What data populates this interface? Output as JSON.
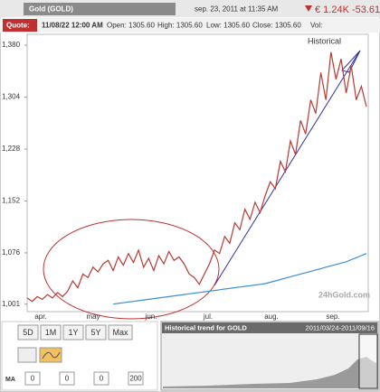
{
  "header": {
    "title": "Gold (GOLD)",
    "timestamp": "sep. 23, 2011 at 11:35 AM",
    "price": "€ 1.24K -53.61"
  },
  "quote": {
    "label": "Quote:",
    "date": "11/08/22 12:00 AM",
    "open": "Open: 1305.60",
    "high": "High: 1305.60",
    "low": "Low: 1305.60",
    "close": "Close: 1305.60",
    "vol": "Vol:"
  },
  "chart_data": {
    "type": "line",
    "annotation": "Historical",
    "watermark": "24hGold.com",
    "x_labels": [
      "apr.",
      "may",
      "jun.",
      "jul.",
      "aug.",
      "sep."
    ],
    "ylim": [
      990,
      1396
    ],
    "yticks": [
      {
        "value": 1001,
        "label": "1,001"
      },
      {
        "value": 1076,
        "label": "1,076"
      },
      {
        "value": 1152,
        "label": "1,152"
      },
      {
        "value": 1228,
        "label": "1,228"
      },
      {
        "value": 1304,
        "label": "1,304"
      },
      {
        "value": 1380,
        "label": "1,380"
      }
    ],
    "grid": false,
    "series": [
      {
        "color": "#b83a32",
        "values": [
          1010,
          1005,
          1012,
          1008,
          1015,
          1010,
          1018,
          1012,
          1020,
          1035,
          1025,
          1045,
          1040,
          1055,
          1048,
          1060,
          1065,
          1050,
          1070,
          1058,
          1075,
          1062,
          1080,
          1055,
          1068,
          1050,
          1072,
          1060,
          1078,
          1065,
          1070,
          1060,
          1045,
          1040,
          1030,
          1045,
          1060,
          1080,
          1075,
          1100,
          1090,
          1120,
          1110,
          1140,
          1125,
          1150,
          1135,
          1160,
          1180,
          1170,
          1210,
          1195,
          1240,
          1220,
          1270,
          1250,
          1300,
          1280,
          1340,
          1300,
          1370,
          1330,
          1360,
          1310,
          1350,
          1300,
          1320,
          1290
        ]
      },
      {
        "color": "#3a8fd6",
        "values": [
          null,
          null,
          null,
          null,
          null,
          null,
          null,
          null,
          null,
          null,
          null,
          null,
          null,
          null,
          null,
          null,
          null,
          1001,
          1002,
          1003,
          1004,
          1005,
          1006,
          1007,
          1008,
          1009,
          1010,
          1011,
          1012,
          1013,
          1014,
          1015,
          1016,
          1017,
          1018,
          1019,
          1020,
          1021,
          1022,
          1023,
          1024,
          1025,
          1026,
          1027,
          1028,
          1029,
          1030,
          1031,
          1033,
          1035,
          1037,
          1039,
          1041,
          1043,
          1045,
          1047,
          1049,
          1051,
          1053,
          1055,
          1057,
          1059,
          1061,
          1063,
          1066,
          1069,
          1072,
          1075
        ]
      }
    ]
  },
  "controls": {
    "ranges": [
      "5D",
      "1M",
      "1Y",
      "5Y",
      "Max"
    ],
    "ma_label": "MA",
    "ma_values": [
      "0",
      "0",
      "0",
      "200"
    ]
  },
  "minimap": {
    "title": "Historical trend for GOLD",
    "range": "2011/03/24-2011/09/16"
  }
}
